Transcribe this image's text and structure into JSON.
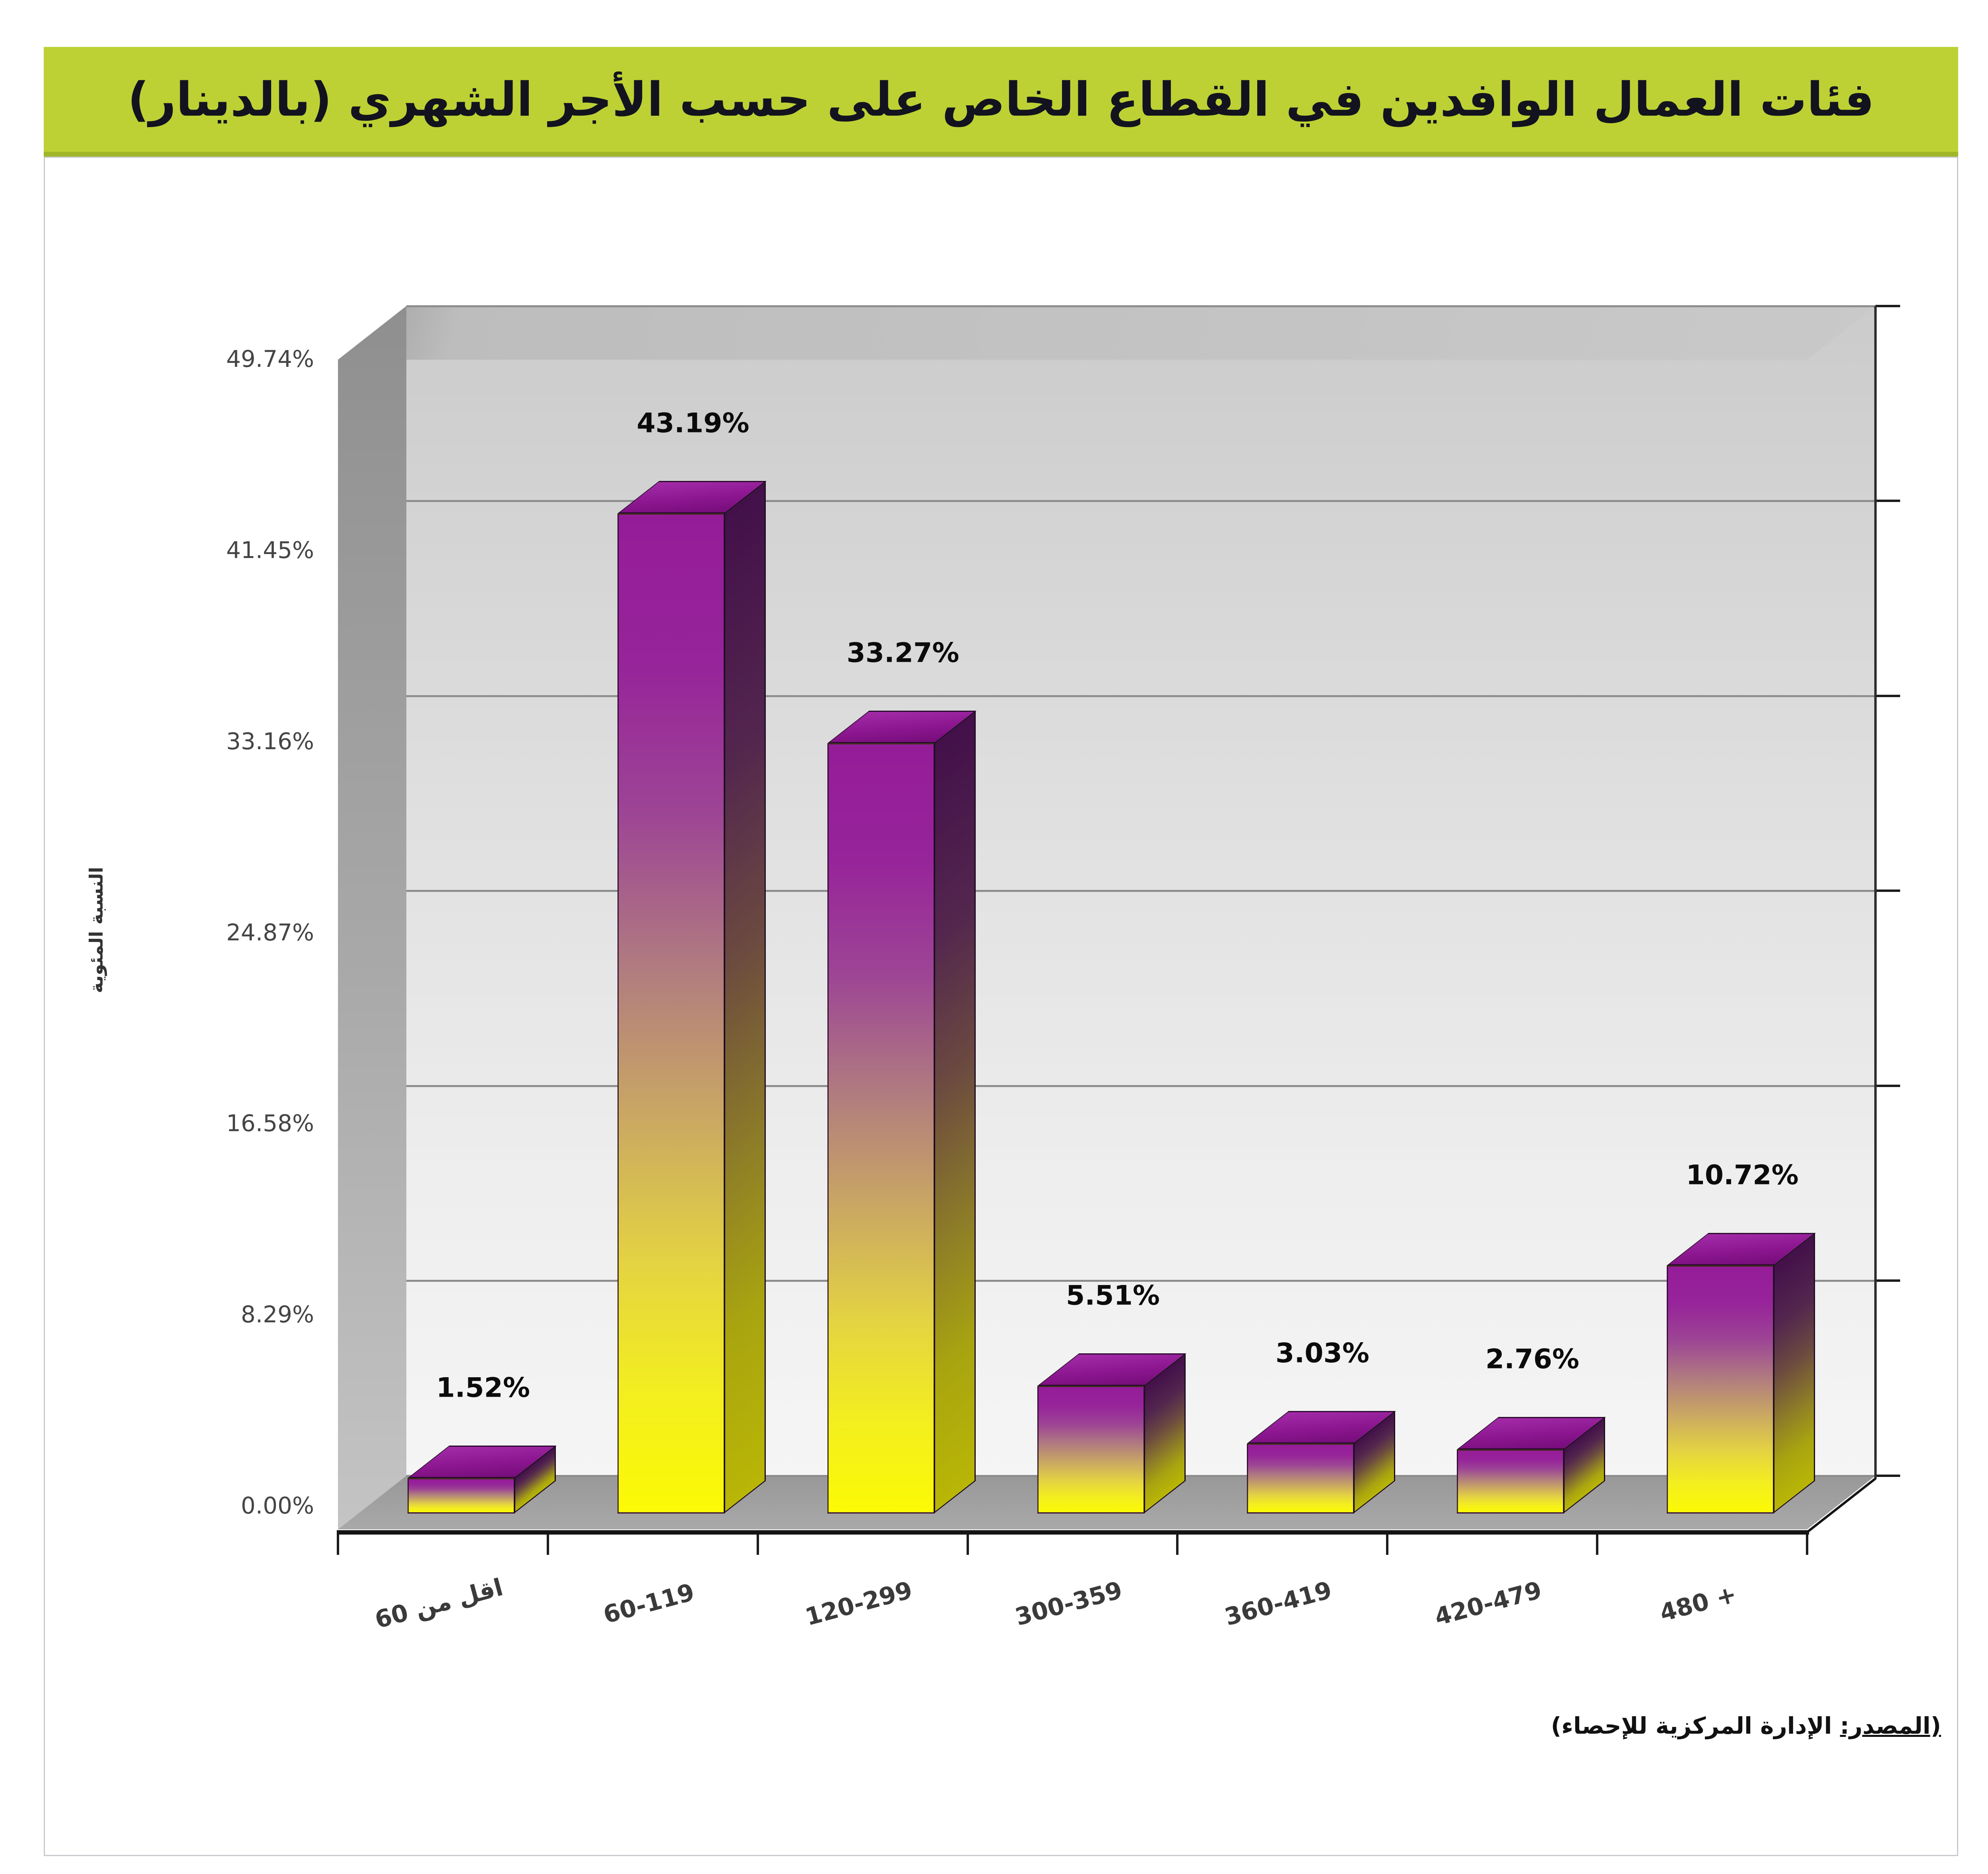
{
  "header": {
    "title": "فئات العمال الوافدين في القطاع الخاص على حسب الأجر الشهري (بالدينار)"
  },
  "footer": {
    "source_prefix": "(المصدر:",
    "source_rest": "الإدارة المركزية للإحصاء)"
  },
  "chart_data": {
    "type": "bar",
    "title": "فئات العمال الوافدين في القطاع الخاص على حسب الأجر الشهري (بالدينار)",
    "xlabel": "",
    "ylabel": "النسبة المئوية",
    "categories": [
      "اقل من 60",
      "60-119",
      "120-299",
      "300-359",
      "360-419",
      "420-479",
      "480 +"
    ],
    "values": [
      1.52,
      43.19,
      33.27,
      5.51,
      3.03,
      2.76,
      10.72
    ],
    "value_labels": [
      "1.52%",
      "43.19%",
      "33.27%",
      "5.51%",
      "3.03%",
      "2.76%",
      "10.72%"
    ],
    "y_ticks": [
      {
        "label": "0.00%",
        "value": 0
      },
      {
        "label": "8.29%",
        "value": 8.29
      },
      {
        "label": "16.58%",
        "value": 16.58
      },
      {
        "label": "24.87%",
        "value": 24.87
      },
      {
        "label": "33.16%",
        "value": 33.16
      },
      {
        "label": "41.45%",
        "value": 41.45
      },
      {
        "label": "49.74%",
        "value": 49.74
      }
    ],
    "ylim": [
      0,
      49.74
    ],
    "grid": true,
    "legend": false,
    "style": "3d-column",
    "colors": {
      "title_bg": "#bdd134",
      "title_border": "#a2b629",
      "bar_top_color": "#8c1690",
      "bar_gradient_top": "#951c99",
      "bar_gradient_bottom": "#fcfa05",
      "wall": "#dedede",
      "floor": "#a0a0a0",
      "gridline": "#8d8d8d",
      "label_color": "#0b0b0b"
    }
  }
}
